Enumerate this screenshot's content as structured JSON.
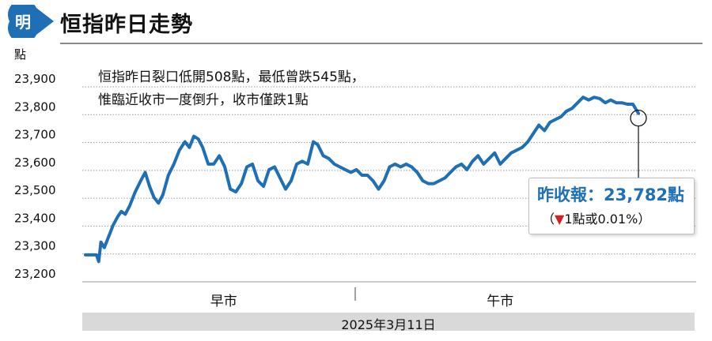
{
  "header": {
    "logo_char": "明",
    "title": "恒指昨日走勢"
  },
  "annotation": {
    "line1": "恒指昨日裂口低開508點，最低曾跌545點，",
    "line2": "惟臨近收市一度倒升，收市僅跌1點"
  },
  "close_box": {
    "main": "昨收報：23,782點",
    "change_open": "（",
    "arrow": "▼",
    "change_text": "1點或0.01%",
    "change_close": "）"
  },
  "footer": {
    "date": "2025年3月11日"
  },
  "colors": {
    "line": "#1f6fb5",
    "badge": "#1f6fb5",
    "down_arrow": "#d32020",
    "grid": "#9a9a9a",
    "date_bar": "#d9d9d9"
  },
  "chart_data": {
    "type": "line",
    "title": "恒指昨日走勢",
    "ylabel": "點",
    "xlabel": "",
    "ylim": [
      23200,
      23900
    ],
    "yticks": [
      23200,
      23300,
      23400,
      23500,
      23600,
      23700,
      23800,
      23900
    ],
    "ytick_labels": [
      "23,200",
      "23,300",
      "23,400",
      "23,500",
      "23,600",
      "23,700",
      "23,800",
      "23,900"
    ],
    "x_axis_unit": "fraction of trading day (0 = open, 1 = close)",
    "sessions": [
      {
        "label": "早市",
        "range": [
          0,
          0.5
        ]
      },
      {
        "label": "午市",
        "range": [
          0.5,
          1
        ]
      }
    ],
    "grid": "horizontal",
    "series": [
      {
        "values": [
          [
            0.0,
            23274
          ],
          [
            0.02,
            23274
          ],
          [
            0.024,
            23250
          ],
          [
            0.028,
            23320
          ],
          [
            0.034,
            23300
          ],
          [
            0.042,
            23340
          ],
          [
            0.05,
            23380
          ],
          [
            0.058,
            23410
          ],
          [
            0.065,
            23430
          ],
          [
            0.072,
            23420
          ],
          [
            0.08,
            23450
          ],
          [
            0.09,
            23500
          ],
          [
            0.1,
            23540
          ],
          [
            0.108,
            23570
          ],
          [
            0.116,
            23520
          ],
          [
            0.124,
            23480
          ],
          [
            0.132,
            23460
          ],
          [
            0.14,
            23490
          ],
          [
            0.15,
            23560
          ],
          [
            0.16,
            23600
          ],
          [
            0.17,
            23650
          ],
          [
            0.18,
            23680
          ],
          [
            0.188,
            23660
          ],
          [
            0.196,
            23700
          ],
          [
            0.204,
            23690
          ],
          [
            0.212,
            23660
          ],
          [
            0.222,
            23600
          ],
          [
            0.232,
            23600
          ],
          [
            0.242,
            23630
          ],
          [
            0.252,
            23590
          ],
          [
            0.262,
            23510
          ],
          [
            0.272,
            23500
          ],
          [
            0.282,
            23530
          ],
          [
            0.292,
            23590
          ],
          [
            0.302,
            23600
          ],
          [
            0.312,
            23540
          ],
          [
            0.322,
            23520
          ],
          [
            0.332,
            23580
          ],
          [
            0.342,
            23590
          ],
          [
            0.352,
            23550
          ],
          [
            0.362,
            23510
          ],
          [
            0.372,
            23540
          ],
          [
            0.382,
            23600
          ],
          [
            0.392,
            23610
          ],
          [
            0.402,
            23600
          ],
          [
            0.412,
            23680
          ],
          [
            0.42,
            23670
          ],
          [
            0.43,
            23630
          ],
          [
            0.44,
            23620
          ],
          [
            0.45,
            23600
          ],
          [
            0.46,
            23590
          ],
          [
            0.47,
            23580
          ],
          [
            0.48,
            23570
          ],
          [
            0.49,
            23580
          ],
          [
            0.5,
            23560
          ],
          [
            0.51,
            23560
          ],
          [
            0.52,
            23540
          ],
          [
            0.53,
            23510
          ],
          [
            0.54,
            23540
          ],
          [
            0.55,
            23590
          ],
          [
            0.56,
            23600
          ],
          [
            0.57,
            23590
          ],
          [
            0.58,
            23600
          ],
          [
            0.59,
            23590
          ],
          [
            0.6,
            23570
          ],
          [
            0.61,
            23540
          ],
          [
            0.62,
            23530
          ],
          [
            0.63,
            23530
          ],
          [
            0.64,
            23540
          ],
          [
            0.65,
            23550
          ],
          [
            0.66,
            23570
          ],
          [
            0.67,
            23590
          ],
          [
            0.68,
            23600
          ],
          [
            0.69,
            23580
          ],
          [
            0.7,
            23610
          ],
          [
            0.71,
            23630
          ],
          [
            0.72,
            23600
          ],
          [
            0.73,
            23620
          ],
          [
            0.74,
            23640
          ],
          [
            0.75,
            23600
          ],
          [
            0.76,
            23620
          ],
          [
            0.77,
            23640
          ],
          [
            0.78,
            23650
          ],
          [
            0.79,
            23660
          ],
          [
            0.8,
            23680
          ],
          [
            0.81,
            23710
          ],
          [
            0.82,
            23740
          ],
          [
            0.83,
            23720
          ],
          [
            0.84,
            23750
          ],
          [
            0.85,
            23760
          ],
          [
            0.86,
            23770
          ],
          [
            0.87,
            23790
          ],
          [
            0.88,
            23800
          ],
          [
            0.89,
            23820
          ],
          [
            0.9,
            23840
          ],
          [
            0.91,
            23830
          ],
          [
            0.92,
            23840
          ],
          [
            0.93,
            23835
          ],
          [
            0.94,
            23820
          ],
          [
            0.95,
            23830
          ],
          [
            0.96,
            23820
          ],
          [
            0.97,
            23820
          ],
          [
            0.98,
            23815
          ],
          [
            0.99,
            23815
          ],
          [
            1.0,
            23782
          ]
        ]
      }
    ],
    "close_marker": {
      "x": 1.0,
      "y": 23782
    }
  }
}
